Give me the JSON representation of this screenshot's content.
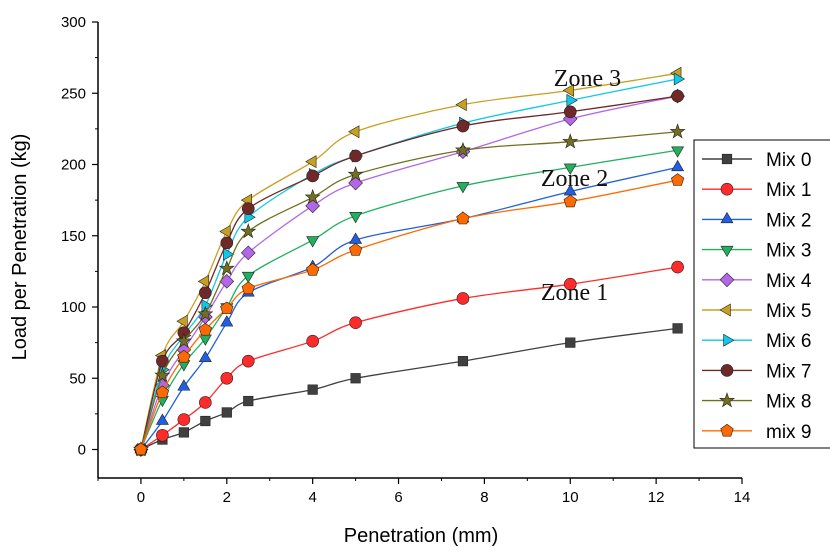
{
  "chart_data": {
    "type": "line",
    "title": "",
    "xlabel": "Penetration (mm)",
    "ylabel": "Load per Penetration (kg)",
    "xlim": [
      -1,
      14
    ],
    "ylim": [
      -20,
      300
    ],
    "xticks": [
      0,
      2,
      4,
      6,
      8,
      10,
      12,
      14
    ],
    "yticks": [
      0,
      50,
      100,
      150,
      200,
      250,
      300
    ],
    "grid": false,
    "legend_position": "right",
    "x": [
      0,
      0.5,
      1,
      1.5,
      2,
      2.5,
      4,
      5,
      7.5,
      10,
      12.5
    ],
    "series": [
      {
        "name": "Mix 0",
        "color": "#404040",
        "marker": "square",
        "values": [
          0,
          7,
          12,
          20,
          26,
          34,
          42,
          50,
          62,
          75,
          85
        ]
      },
      {
        "name": "Mix 1",
        "color": "#ff2a2a",
        "marker": "circle",
        "values": [
          0,
          10,
          21,
          33,
          50,
          62,
          76,
          89,
          106,
          116,
          128
        ]
      },
      {
        "name": "Mix 2",
        "color": "#1f5fe0",
        "marker": "triangle-up",
        "values": [
          0,
          20,
          44,
          64,
          89,
          110,
          128,
          147,
          162,
          181,
          198
        ]
      },
      {
        "name": "Mix 3",
        "color": "#20b060",
        "marker": "triangle-down",
        "values": [
          0,
          35,
          60,
          78,
          100,
          122,
          147,
          164,
          185,
          198,
          210
        ]
      },
      {
        "name": "Mix 4",
        "color": "#b466e8",
        "marker": "diamond",
        "values": [
          0,
          45,
          70,
          93,
          118,
          138,
          171,
          187,
          209,
          232,
          248
        ]
      },
      {
        "name": "Mix 5",
        "color": "#c8a020",
        "marker": "triangle-left",
        "values": [
          0,
          66,
          90,
          118,
          153,
          175,
          202,
          223,
          242,
          252,
          264
        ]
      },
      {
        "name": "Mix 6",
        "color": "#10c8e8",
        "marker": "triangle-right",
        "values": [
          0,
          56,
          80,
          101,
          137,
          163,
          193,
          206,
          229,
          245,
          260
        ]
      },
      {
        "name": "Mix 7",
        "color": "#702828",
        "marker": "circle",
        "values": [
          0,
          62,
          82,
          110,
          145,
          169,
          192,
          206,
          227,
          237,
          248
        ]
      },
      {
        "name": "Mix 8",
        "color": "#707020",
        "marker": "star",
        "values": [
          0,
          52,
          76,
          95,
          127,
          153,
          177,
          193,
          210,
          216,
          223
        ]
      },
      {
        "name": "mix 9",
        "color": "#ff6a00",
        "marker": "pentagon",
        "values": [
          0,
          40,
          65,
          84,
          99,
          113,
          126,
          140,
          162,
          174,
          189
        ]
      }
    ],
    "annotations": [
      {
        "text": "Zone 3",
        "x": 10.4,
        "y": 255
      },
      {
        "text": "Zone 2",
        "x": 10.1,
        "y": 185
      },
      {
        "text": "Zone 1",
        "x": 10.1,
        "y": 105
      }
    ]
  }
}
